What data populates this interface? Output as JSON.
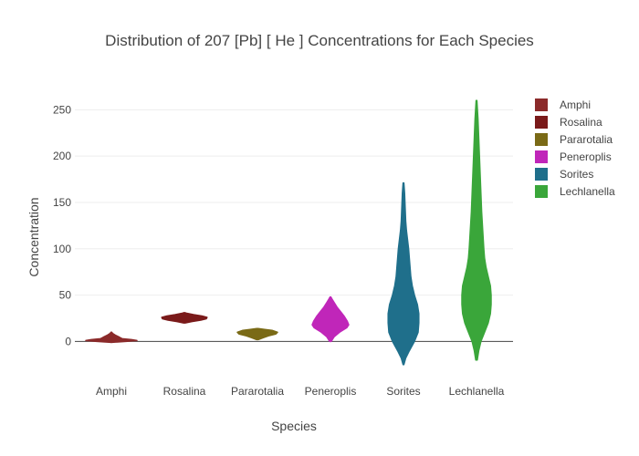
{
  "chart_data": {
    "type": "violin",
    "title": "Distribution of 207  [Pb]  [ He ]  Concentrations for Each Species",
    "xlabel": "Species",
    "ylabel": "Concentration",
    "ylim": [
      -35,
      270
    ],
    "yticks": [
      0,
      50,
      100,
      150,
      200,
      250
    ],
    "grid": true,
    "legend_position": "top-right",
    "categories": [
      "Amphi",
      "Rosalina",
      "Pararotalia",
      "Peneroplis",
      "Sorites",
      "Lechlanella"
    ],
    "series": [
      {
        "name": "Amphi",
        "color": "#8b2a2a",
        "profile": [
          [
            -1,
            0.02
          ],
          [
            0,
            0.4
          ],
          [
            1,
            0.7
          ],
          [
            2,
            0.55
          ],
          [
            3,
            0.3
          ],
          [
            4,
            0.25
          ],
          [
            5,
            0.2
          ],
          [
            6,
            0.15
          ],
          [
            7,
            0.1
          ],
          [
            8,
            0.06
          ],
          [
            9,
            0.03
          ],
          [
            10,
            0.01
          ]
        ]
      },
      {
        "name": "Rosalina",
        "color": "#7a1a1a",
        "profile": [
          [
            20,
            0.02
          ],
          [
            21.5,
            0.2
          ],
          [
            23,
            0.45
          ],
          [
            24.5,
            0.6
          ],
          [
            26,
            0.62
          ],
          [
            27.5,
            0.48
          ],
          [
            29,
            0.25
          ],
          [
            30.5,
            0.05
          ],
          [
            31,
            0.01
          ]
        ]
      },
      {
        "name": "Pararotalia",
        "color": "#7a6a16",
        "profile": [
          [
            2,
            0.02
          ],
          [
            4,
            0.15
          ],
          [
            6,
            0.3
          ],
          [
            8,
            0.5
          ],
          [
            10,
            0.55
          ],
          [
            12,
            0.4
          ],
          [
            13,
            0.2
          ],
          [
            14,
            0.02
          ]
        ]
      },
      {
        "name": "Peneroplis",
        "color": "#c026b9",
        "profile": [
          [
            0,
            0.02
          ],
          [
            5,
            0.1
          ],
          [
            10,
            0.25
          ],
          [
            15,
            0.45
          ],
          [
            18,
            0.5
          ],
          [
            22,
            0.46
          ],
          [
            27,
            0.38
          ],
          [
            32,
            0.28
          ],
          [
            37,
            0.18
          ],
          [
            42,
            0.1
          ],
          [
            46,
            0.04
          ],
          [
            48,
            0.01
          ]
        ]
      },
      {
        "name": "Sorites",
        "color": "#1f6f8b",
        "profile": [
          [
            -25,
            0.01
          ],
          [
            -18,
            0.06
          ],
          [
            -10,
            0.16
          ],
          [
            0,
            0.3
          ],
          [
            10,
            0.4
          ],
          [
            20,
            0.42
          ],
          [
            30,
            0.42
          ],
          [
            40,
            0.38
          ],
          [
            50,
            0.3
          ],
          [
            60,
            0.24
          ],
          [
            70,
            0.2
          ],
          [
            80,
            0.18
          ],
          [
            90,
            0.16
          ],
          [
            100,
            0.14
          ],
          [
            110,
            0.11
          ],
          [
            120,
            0.08
          ],
          [
            130,
            0.06
          ],
          [
            140,
            0.05
          ],
          [
            150,
            0.04
          ],
          [
            160,
            0.03
          ],
          [
            171,
            0.01
          ]
        ]
      },
      {
        "name": "Lechlanella",
        "color": "#3aa63a",
        "profile": [
          [
            -20,
            0.02
          ],
          [
            -10,
            0.06
          ],
          [
            0,
            0.12
          ],
          [
            10,
            0.22
          ],
          [
            20,
            0.32
          ],
          [
            30,
            0.38
          ],
          [
            40,
            0.4
          ],
          [
            50,
            0.4
          ],
          [
            60,
            0.38
          ],
          [
            70,
            0.32
          ],
          [
            80,
            0.26
          ],
          [
            90,
            0.22
          ],
          [
            100,
            0.2
          ],
          [
            120,
            0.17
          ],
          [
            140,
            0.14
          ],
          [
            160,
            0.12
          ],
          [
            180,
            0.1
          ],
          [
            200,
            0.08
          ],
          [
            220,
            0.06
          ],
          [
            240,
            0.04
          ],
          [
            260,
            0.01
          ]
        ]
      }
    ]
  }
}
